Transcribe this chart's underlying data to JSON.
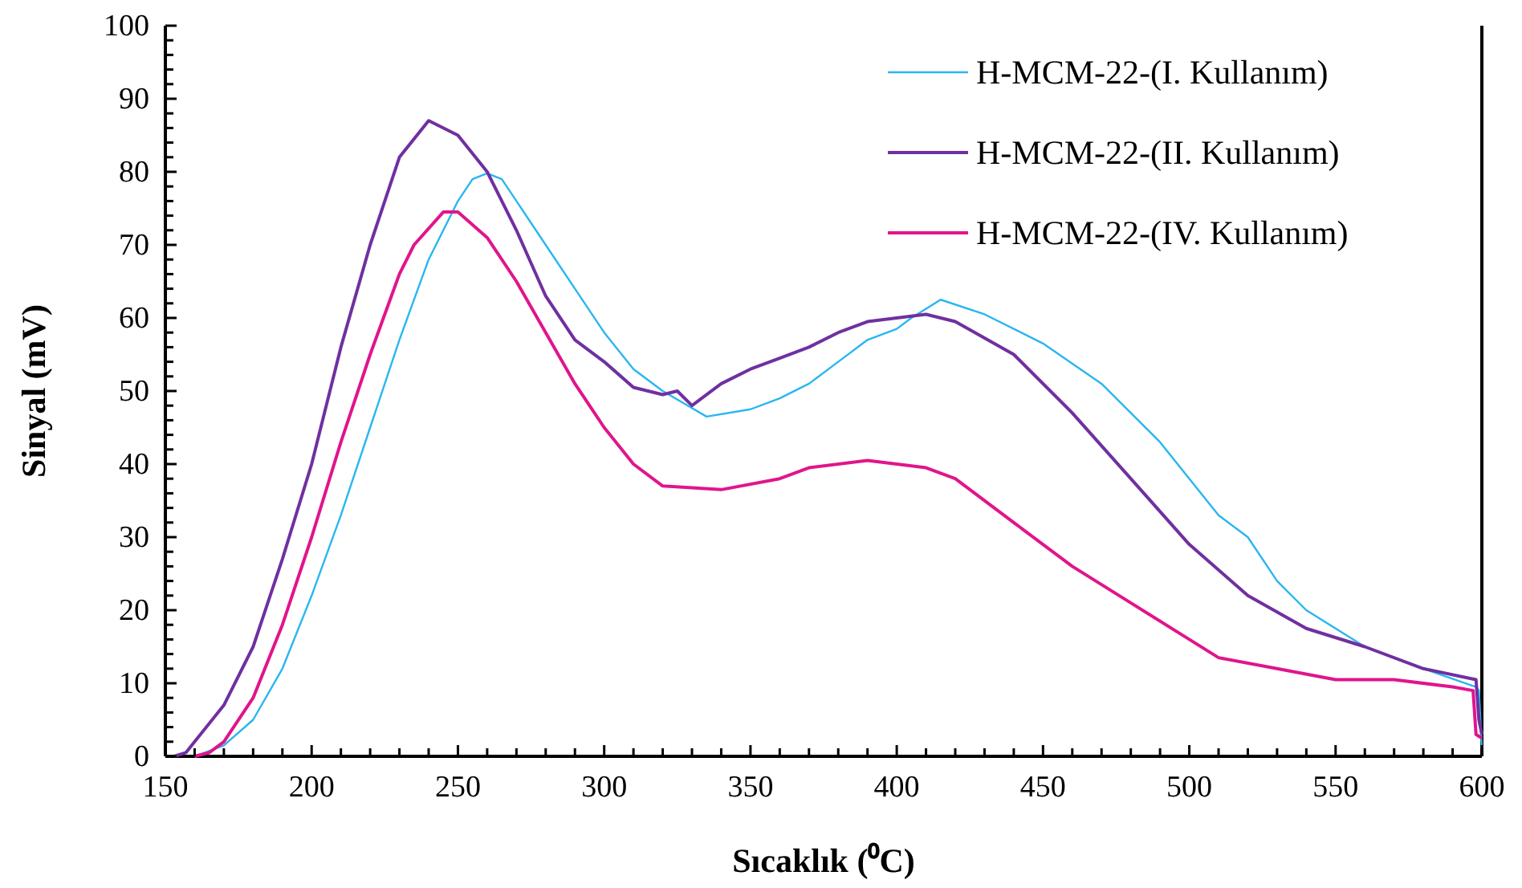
{
  "chart_data": {
    "type": "line",
    "xlabel": "Sıcaklık (⁰C)",
    "ylabel": "Sinyal (mV)",
    "xlim": [
      150,
      600
    ],
    "ylim": [
      0,
      100
    ],
    "xticks": [
      150,
      {
        "value": 160,
        "label": null
      },
      {
        "value": 170,
        "label": null
      },
      {
        "value": 180,
        "label": null
      },
      {
        "value": 190,
        "label": null
      },
      200,
      {
        "value": 210,
        "label": null
      },
      {
        "value": 220,
        "label": null
      },
      {
        "value": 230,
        "label": null
      },
      {
        "value": 240,
        "label": null
      },
      250,
      {
        "value": 260,
        "label": null
      },
      {
        "value": 270,
        "label": null
      },
      {
        "value": 280,
        "label": null
      },
      {
        "value": 290,
        "label": null
      },
      300,
      {
        "value": 310,
        "label": null
      },
      {
        "value": 320,
        "label": null
      },
      {
        "value": 330,
        "label": null
      },
      {
        "value": 340,
        "label": null
      },
      350,
      {
        "value": 360,
        "label": null
      },
      {
        "value": 370,
        "label": null
      },
      {
        "value": 380,
        "label": null
      },
      {
        "value": 390,
        "label": null
      },
      400,
      {
        "value": 410,
        "label": null
      },
      {
        "value": 420,
        "label": null
      },
      {
        "value": 430,
        "label": null
      },
      {
        "value": 440,
        "label": null
      },
      450,
      {
        "value": 460,
        "label": null
      },
      {
        "value": 470,
        "label": null
      },
      {
        "value": 480,
        "label": null
      },
      {
        "value": 490,
        "label": null
      },
      500,
      {
        "value": 510,
        "label": null
      },
      {
        "value": 520,
        "label": null
      },
      {
        "value": 530,
        "label": null
      },
      {
        "value": 540,
        "label": null
      },
      550,
      {
        "value": 560,
        "label": null
      },
      {
        "value": 570,
        "label": null
      },
      {
        "value": 580,
        "label": null
      },
      {
        "value": 590,
        "label": null
      },
      600
    ],
    "yticks": [
      0,
      {
        "value": 2,
        "label": null
      },
      {
        "value": 4,
        "label": null
      },
      {
        "value": 6,
        "label": null
      },
      {
        "value": 8,
        "label": null
      },
      10,
      {
        "value": 12,
        "label": null
      },
      {
        "value": 14,
        "label": null
      },
      {
        "value": 16,
        "label": null
      },
      {
        "value": 18,
        "label": null
      },
      20,
      {
        "value": 22,
        "label": null
      },
      {
        "value": 24,
        "label": null
      },
      {
        "value": 26,
        "label": null
      },
      {
        "value": 28,
        "label": null
      },
      30,
      {
        "value": 32,
        "label": null
      },
      {
        "value": 34,
        "label": null
      },
      {
        "value": 36,
        "label": null
      },
      {
        "value": 38,
        "label": null
      },
      40,
      {
        "value": 42,
        "label": null
      },
      {
        "value": 44,
        "label": null
      },
      {
        "value": 46,
        "label": null
      },
      {
        "value": 48,
        "label": null
      },
      50,
      {
        "value": 52,
        "label": null
      },
      {
        "value": 54,
        "label": null
      },
      {
        "value": 56,
        "label": null
      },
      {
        "value": 58,
        "label": null
      },
      60,
      {
        "value": 62,
        "label": null
      },
      {
        "value": 64,
        "label": null
      },
      {
        "value": 66,
        "label": null
      },
      {
        "value": 68,
        "label": null
      },
      70,
      {
        "value": 72,
        "label": null
      },
      {
        "value": 74,
        "label": null
      },
      {
        "value": 76,
        "label": null
      },
      {
        "value": 78,
        "label": null
      },
      80,
      {
        "value": 82,
        "label": null
      },
      {
        "value": 84,
        "label": null
      },
      {
        "value": 86,
        "label": null
      },
      {
        "value": 88,
        "label": null
      },
      90,
      {
        "value": 92,
        "label": null
      },
      {
        "value": 94,
        "label": null
      },
      {
        "value": 96,
        "label": null
      },
      {
        "value": 98,
        "label": null
      },
      100
    ],
    "grid": false,
    "legend": "top right",
    "marker": "none",
    "line_style": "solid",
    "series": [
      {
        "name": "H-MCM-22-(I. Kullanım)",
        "color": "#29b6f0",
        "x": [
          160,
          170,
          180,
          190,
          200,
          210,
          220,
          230,
          240,
          250,
          255,
          260,
          265,
          270,
          280,
          290,
          300,
          310,
          320,
          335,
          350,
          360,
          370,
          380,
          390,
          400,
          405,
          415,
          430,
          450,
          470,
          490,
          500,
          510,
          520,
          530,
          540,
          560,
          580,
          598,
          599,
          600
        ],
        "values": [
          0,
          1.5,
          5,
          12,
          22,
          33,
          45,
          57,
          68,
          76,
          79,
          79.8,
          79,
          76,
          70,
          64,
          58,
          53,
          50,
          46.5,
          47.5,
          49,
          51,
          54,
          57,
          58.5,
          60,
          62.5,
          60.5,
          56.5,
          51,
          43,
          38,
          33,
          30,
          24,
          20,
          15,
          12,
          9.5,
          9,
          1
        ]
      },
      {
        "name": "H-MCM-22-(II. Kullanım)",
        "color": "#7030a0",
        "x": [
          153,
          157,
          160,
          170,
          180,
          190,
          200,
          210,
          220,
          230,
          240,
          250,
          260,
          270,
          280,
          290,
          300,
          310,
          320,
          325,
          330,
          340,
          350,
          360,
          370,
          380,
          390,
          400,
          410,
          420,
          440,
          460,
          480,
          500,
          520,
          540,
          560,
          580,
          598,
          599,
          600
        ],
        "values": [
          0,
          0.5,
          2,
          7,
          15,
          27,
          40,
          56,
          70,
          82,
          87,
          85,
          80,
          72,
          63,
          57,
          54,
          50.5,
          49.5,
          50,
          48,
          51,
          53,
          54.5,
          56,
          58,
          59.5,
          60,
          60.5,
          59.5,
          55,
          47,
          38,
          29,
          22,
          17.5,
          15,
          12,
          10.5,
          5,
          3
        ]
      },
      {
        "name": "H-MCM-22-(IV. Kullanım)",
        "color": "#e0158c",
        "x": [
          160,
          165,
          170,
          180,
          190,
          200,
          210,
          220,
          230,
          235,
          245,
          250,
          260,
          270,
          280,
          290,
          300,
          310,
          320,
          340,
          360,
          370,
          390,
          410,
          420,
          440,
          460,
          480,
          500,
          510,
          530,
          550,
          570,
          590,
          597,
          598,
          600
        ],
        "values": [
          0,
          0.5,
          2,
          8,
          18,
          30,
          43,
          55,
          66,
          70,
          74.5,
          74.5,
          71,
          65,
          58,
          51,
          45,
          40,
          37,
          36.5,
          38,
          39.5,
          40.5,
          39.5,
          38,
          32,
          26,
          21,
          16,
          13.5,
          12,
          10.5,
          10.5,
          9.5,
          9,
          3,
          2.5
        ]
      }
    ]
  }
}
